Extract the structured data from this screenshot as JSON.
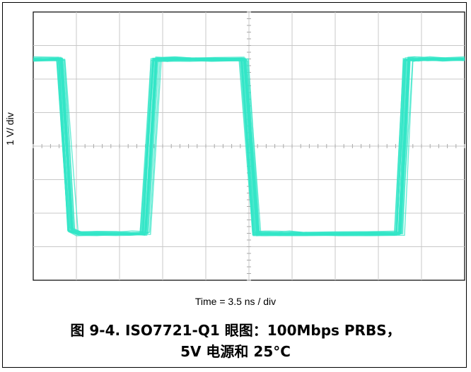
{
  "chart_data": {
    "type": "line",
    "title": "",
    "xlabel": "Time = 3.5 ns / div",
    "ylabel": "1 V/ div",
    "grid": true,
    "x_divisions": 10,
    "y_divisions": 8,
    "trace_color": "#33e6c7",
    "series": [
      {
        "x": [
          0,
          0.65,
          0.9,
          1.1,
          1.5,
          2.0,
          2.3,
          2.6,
          2.85,
          3.0,
          3.3,
          3.7,
          4.2,
          4.9,
          5.2,
          5.45,
          5.7,
          5.95,
          6.3,
          7.0,
          7.8,
          8.5,
          8.7,
          8.85,
          9.0,
          9.2,
          9.6,
          10
        ],
        "y": [
          2.6,
          2.6,
          -2.5,
          -2.6,
          -2.6,
          -2.6,
          -2.6,
          -2.6,
          2.6,
          2.6,
          2.6,
          2.6,
          2.6,
          2.6,
          -2.6,
          -2.6,
          -2.6,
          -2.6,
          -2.6,
          -2.6,
          -2.6,
          -2.6,
          2.6,
          2.6,
          2.6,
          2.6,
          2.6,
          2.6
        ]
      }
    ]
  },
  "caption": {
    "line1": "图 9-4. ISO7721-Q1 眼图：100Mbps PRBS，",
    "line2": "5V 电源和 25°C"
  }
}
